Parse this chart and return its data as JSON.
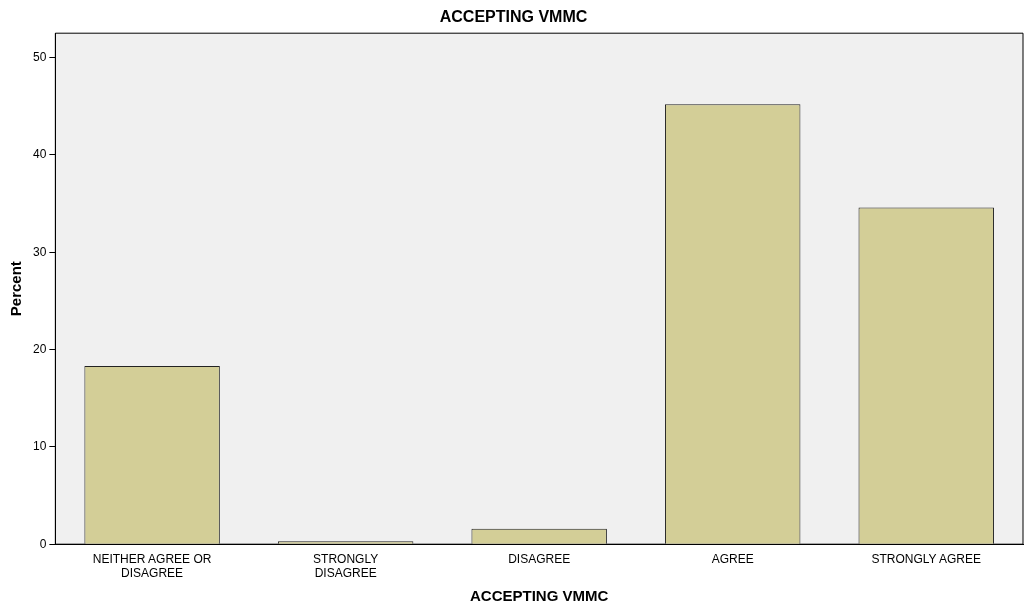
{
  "chart_data": {
    "type": "bar",
    "title": "ACCEPTING VMMC",
    "xlabel": "ACCEPTING VMMC",
    "ylabel": "Percent",
    "categories": [
      "NEITHER AGREE OR DISAGREE",
      "STRONGLY DISAGREE",
      "DISAGREE",
      "AGREE",
      "STRONGLY AGREE"
    ],
    "values": [
      18.3,
      0.3,
      1.6,
      45.2,
      34.6
    ],
    "color": "#d3ce97",
    "ylim": [
      0,
      52.5
    ],
    "yticks": [
      0,
      10,
      20,
      30,
      40,
      50
    ],
    "grid": false,
    "legend": false
  }
}
